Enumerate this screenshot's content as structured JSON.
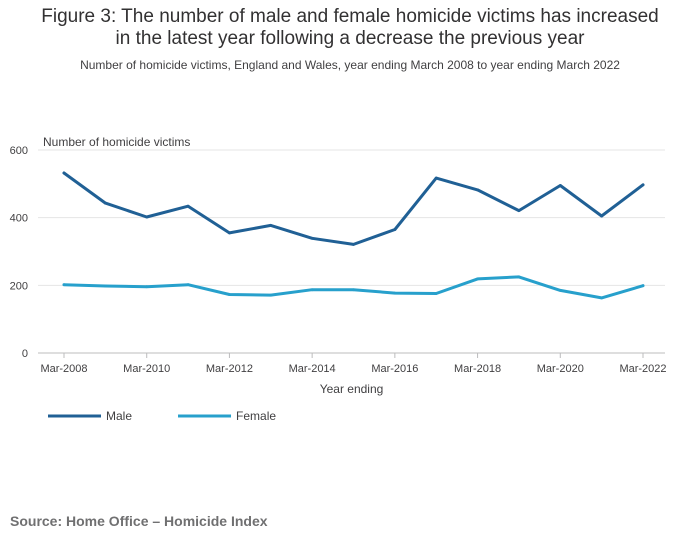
{
  "chart_data": {
    "type": "line",
    "title_lines": [
      "Figure 3: The number of male and female homicide victims has increased",
      "in the latest year following a decrease the previous year"
    ],
    "subtitle": "Number of homicide victims, England and Wales, year ending March 2008 to year ending March 2022",
    "ylabel": "Number of homicide victims",
    "xlabel": "Year ending",
    "ylim": [
      0,
      600
    ],
    "yticks": [
      0,
      200,
      400,
      600
    ],
    "categories": [
      "Mar-2008",
      "Mar-2009",
      "Mar-2010",
      "Mar-2011",
      "Mar-2012",
      "Mar-2013",
      "Mar-2014",
      "Mar-2015",
      "Mar-2016",
      "Mar-2017",
      "Mar-2018",
      "Mar-2019",
      "Mar-2020",
      "Mar-2021",
      "Mar-2022"
    ],
    "xtick_labels": [
      "Mar-2008",
      "Mar-2010",
      "Mar-2012",
      "Mar-2014",
      "Mar-2016",
      "Mar-2018",
      "Mar-2020",
      "Mar-2022"
    ],
    "series": [
      {
        "name": "Male",
        "color": "#206095",
        "values": [
          532,
          443,
          402,
          434,
          355,
          377,
          339,
          321,
          365,
          517,
          482,
          421,
          495,
          405,
          497
        ]
      },
      {
        "name": "Female",
        "color": "#27a0cc",
        "values": [
          202,
          198,
          196,
          202,
          173,
          171,
          187,
          187,
          177,
          176,
          219,
          225,
          185,
          163,
          199
        ]
      }
    ],
    "legend_position": "bottom-left",
    "grid": true
  },
  "source": "Source: Home Office – Homicide Index"
}
